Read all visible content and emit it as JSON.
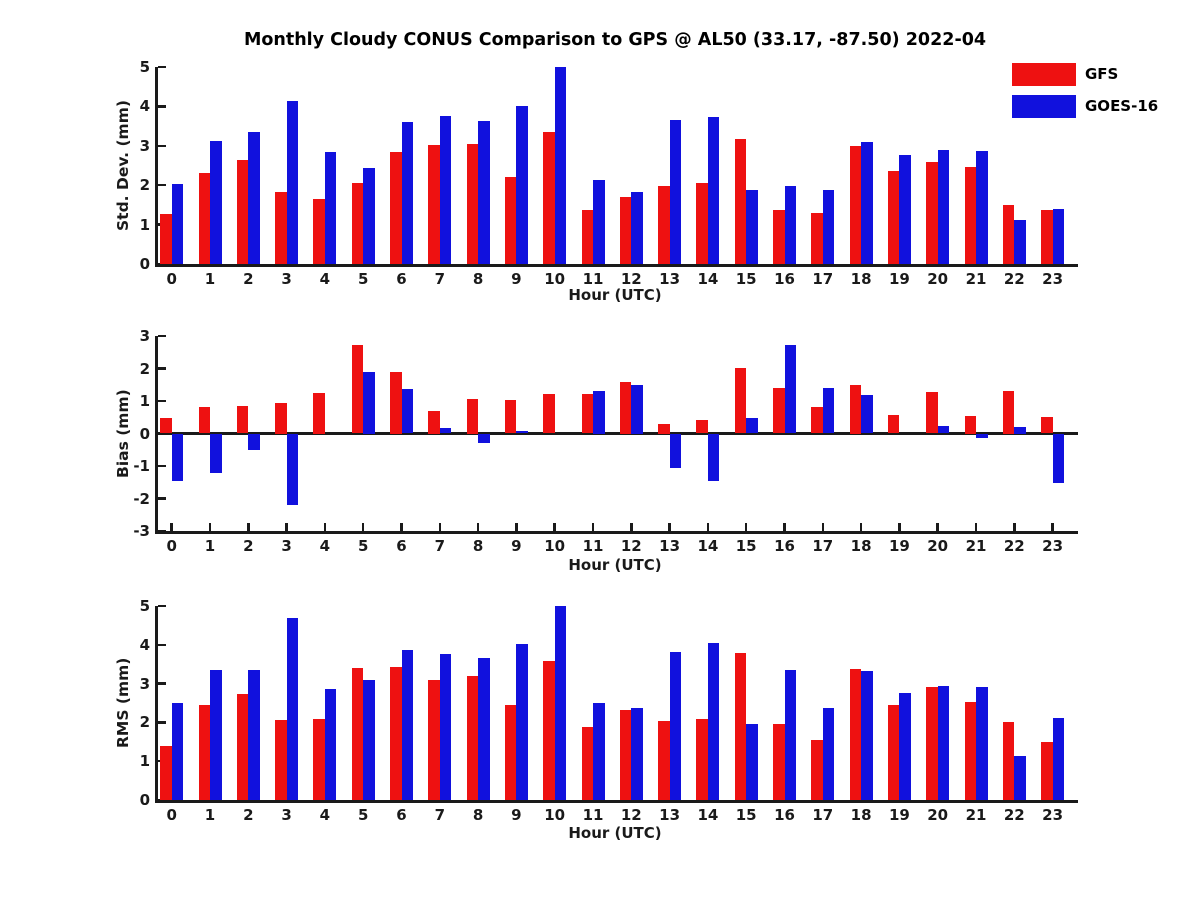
{
  "figure": {
    "background": "#ffffff",
    "title": "Monthly Cloudy CONUS Comparison to GPS @ AL50 (33.17, -87.50) 2022-04"
  },
  "legend": {
    "position": "top-right",
    "items": [
      {
        "label": "GFS",
        "color": "#ee1111"
      },
      {
        "label": "GOES-16",
        "color": "#1111dd"
      }
    ]
  },
  "chart_data": [
    {
      "type": "bar",
      "title": "Monthly Cloudy CONUS Comparison to GPS @ AL50 (33.17, -87.50) 2022-04",
      "xlabel": "Hour (UTC)",
      "ylabel": "Std. Dev. (mm)",
      "ylim": [
        0,
        5
      ],
      "yticks": [
        0,
        1,
        2,
        3,
        4,
        5
      ],
      "grid": false,
      "categories": [
        "0",
        "1",
        "2",
        "3",
        "4",
        "5",
        "6",
        "7",
        "8",
        "9",
        "10",
        "11",
        "12",
        "13",
        "14",
        "15",
        "16",
        "17",
        "18",
        "19",
        "20",
        "21",
        "22",
        "23"
      ],
      "series": [
        {
          "name": "GFS",
          "color": "#ee1111",
          "values": [
            1.27,
            2.32,
            2.64,
            1.83,
            1.65,
            2.05,
            2.83,
            3.03,
            3.05,
            2.21,
            3.35,
            1.38,
            1.7,
            1.98,
            2.06,
            3.18,
            1.37,
            1.3,
            3.0,
            2.36,
            2.59,
            2.45,
            1.5,
            1.38
          ]
        },
        {
          "name": "GOES-16",
          "color": "#1111dd",
          "values": [
            2.03,
            3.13,
            3.34,
            4.13,
            2.85,
            2.44,
            3.6,
            3.76,
            3.63,
            4.01,
            5.0,
            2.12,
            1.82,
            3.66,
            3.74,
            1.89,
            1.99,
            1.89,
            3.1,
            2.76,
            2.9,
            2.88,
            1.12,
            1.4
          ]
        }
      ]
    },
    {
      "type": "bar",
      "xlabel": "Hour (UTC)",
      "ylabel": "Bias (mm)",
      "ylim": [
        -3,
        3
      ],
      "yticks": [
        3,
        2,
        1,
        0,
        -1,
        -2,
        -3
      ],
      "zeroline": true,
      "grid": false,
      "categories": [
        "0",
        "1",
        "2",
        "3",
        "4",
        "5",
        "6",
        "7",
        "8",
        "9",
        "10",
        "11",
        "12",
        "13",
        "14",
        "15",
        "16",
        "17",
        "18",
        "19",
        "20",
        "21",
        "22",
        "23"
      ],
      "series": [
        {
          "name": "GFS",
          "color": "#ee1111",
          "values": [
            0.48,
            0.82,
            0.86,
            0.95,
            1.25,
            2.72,
            1.9,
            0.7,
            1.05,
            1.02,
            1.22,
            1.22,
            1.6,
            0.3,
            0.41,
            2.01,
            1.39,
            0.81,
            1.5,
            0.58,
            1.27,
            0.55,
            1.3,
            0.51
          ]
        },
        {
          "name": "GOES-16",
          "color": "#1111dd",
          "values": [
            -1.45,
            -1.22,
            -0.52,
            -2.2,
            0.0,
            1.9,
            1.37,
            0.17,
            -0.3,
            0.08,
            0.0,
            1.3,
            1.5,
            -1.05,
            -1.45,
            0.48,
            2.72,
            1.41,
            1.18,
            0.0,
            0.22,
            -0.15,
            0.2,
            -1.52
          ]
        }
      ]
    },
    {
      "type": "bar",
      "xlabel": "Hour (UTC)",
      "ylabel": "RMS (mm)",
      "ylim": [
        0,
        5
      ],
      "yticks": [
        0,
        1,
        2,
        3,
        4,
        5
      ],
      "grid": false,
      "categories": [
        "0",
        "1",
        "2",
        "3",
        "4",
        "5",
        "6",
        "7",
        "8",
        "9",
        "10",
        "11",
        "12",
        "13",
        "14",
        "15",
        "16",
        "17",
        "18",
        "19",
        "20",
        "21",
        "22",
        "23"
      ],
      "series": [
        {
          "name": "GFS",
          "color": "#ee1111",
          "values": [
            1.38,
            2.44,
            2.74,
            2.05,
            2.08,
            3.4,
            3.42,
            3.08,
            3.2,
            2.44,
            3.58,
            1.87,
            2.32,
            2.04,
            2.1,
            3.79,
            1.96,
            1.54,
            3.37,
            2.46,
            2.9,
            2.52,
            2.0,
            1.49
          ]
        },
        {
          "name": "GOES-16",
          "color": "#1111dd",
          "values": [
            2.5,
            3.35,
            3.35,
            4.7,
            2.85,
            3.1,
            3.87,
            3.77,
            3.66,
            4.03,
            5.0,
            2.5,
            2.38,
            3.82,
            4.05,
            1.95,
            3.36,
            2.37,
            3.33,
            2.75,
            2.93,
            2.91,
            1.13,
            2.11
          ]
        }
      ]
    }
  ]
}
